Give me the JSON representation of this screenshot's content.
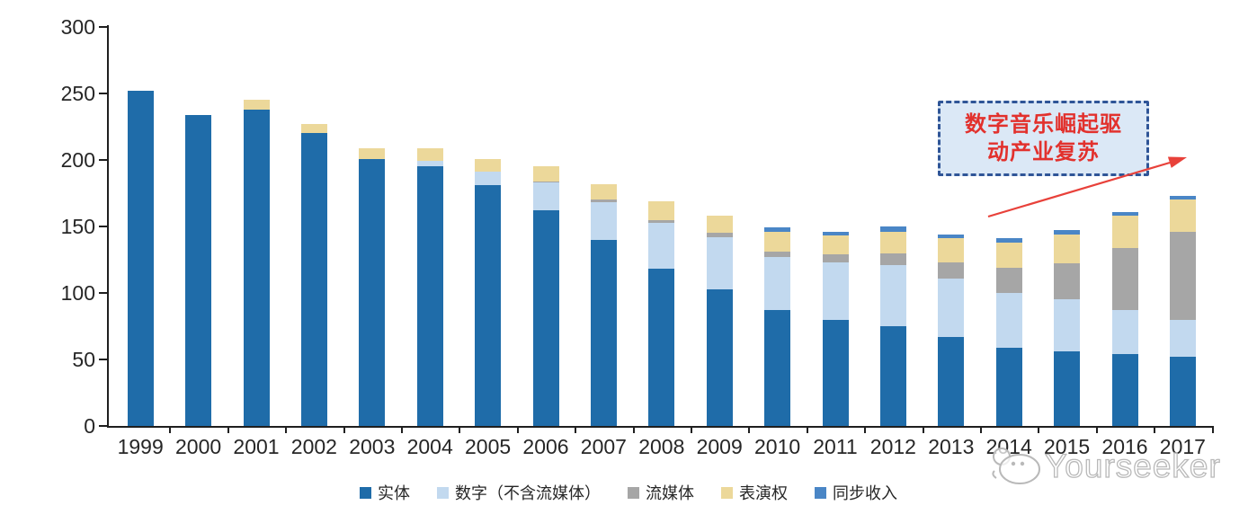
{
  "chart_data": {
    "type": "bar",
    "variant": "stacked",
    "title": "",
    "xlabel": "",
    "ylabel": "",
    "ylim": [
      0,
      300
    ],
    "yticks": [
      0,
      50,
      100,
      150,
      200,
      250,
      300
    ],
    "grid": false,
    "legend_position": "bottom",
    "categories": [
      "1999",
      "2000",
      "2001",
      "2002",
      "2003",
      "2004",
      "2005",
      "2006",
      "2007",
      "2008",
      "2009",
      "2010",
      "2011",
      "2012",
      "2013",
      "2014",
      "2015",
      "2016",
      "2017"
    ],
    "series": [
      {
        "name": "实体",
        "color": "#1F6CA9",
        "values": [
          252,
          234,
          238,
          220,
          201,
          195,
          181,
          162,
          140,
          118,
          103,
          87,
          80,
          75,
          67,
          59,
          56,
          54,
          52
        ]
      },
      {
        "name": "数字（不含流媒体）",
        "color": "#C2D9EF",
        "values": [
          0,
          0,
          0,
          0,
          0,
          4,
          10,
          21,
          28,
          35,
          39,
          40,
          43,
          46,
          44,
          41,
          39,
          33,
          28
        ]
      },
      {
        "name": "流媒体",
        "color": "#A6A6A6",
        "values": [
          0,
          0,
          0,
          0,
          0,
          0,
          0,
          1,
          2,
          2,
          3,
          4,
          6,
          9,
          12,
          19,
          27,
          47,
          66
        ]
      },
      {
        "name": "表演权",
        "color": "#ECD89A",
        "values": [
          0,
          0,
          7,
          7,
          8,
          10,
          10,
          11,
          12,
          14,
          13,
          15,
          14,
          16,
          18,
          19,
          22,
          24,
          24
        ]
      },
      {
        "name": "同步收入",
        "color": "#4A86C6",
        "values": [
          0,
          0,
          0,
          0,
          0,
          0,
          0,
          0,
          0,
          0,
          0,
          3,
          3,
          4,
          3,
          3,
          3,
          3,
          3
        ]
      }
    ]
  },
  "annotation": {
    "line1": "数字音乐崛起驱",
    "line2": "动产业复苏",
    "text_color": "#E2312D",
    "box_fill": "#DBE8F6",
    "border_color": "#2F5597",
    "arrow_color": "#E8413A"
  },
  "watermark": {
    "text": "Yourseeker",
    "logo": "hippo-face-icon"
  }
}
